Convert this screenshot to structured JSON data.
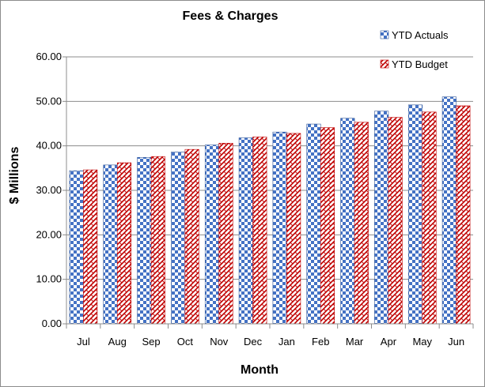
{
  "chart_data": {
    "type": "bar",
    "title": "Fees & Charges",
    "xlabel": "Month",
    "ylabel": "$ Millions",
    "categories": [
      "Jul",
      "Aug",
      "Sep",
      "Oct",
      "Nov",
      "Dec",
      "Jan",
      "Feb",
      "Mar",
      "Apr",
      "May",
      "Jun"
    ],
    "series": [
      {
        "name": "YTD Actuals",
        "color": "#4472c4",
        "values": [
          34.4,
          35.7,
          37.4,
          38.6,
          40.2,
          41.8,
          43.1,
          44.9,
          46.2,
          47.8,
          49.2,
          51.0
        ]
      },
      {
        "name": "YTD Budget",
        "color": "#c00000",
        "values": [
          34.6,
          36.2,
          37.6,
          39.2,
          40.6,
          42.0,
          42.8,
          44.1,
          45.3,
          46.4,
          47.6,
          49.0
        ]
      }
    ],
    "ylim": [
      0,
      60
    ],
    "yticks": [
      "0.00",
      "10.00",
      "20.00",
      "30.00",
      "40.00",
      "50.00",
      "60.00"
    ],
    "grid": true,
    "legend_position": "top-right"
  }
}
